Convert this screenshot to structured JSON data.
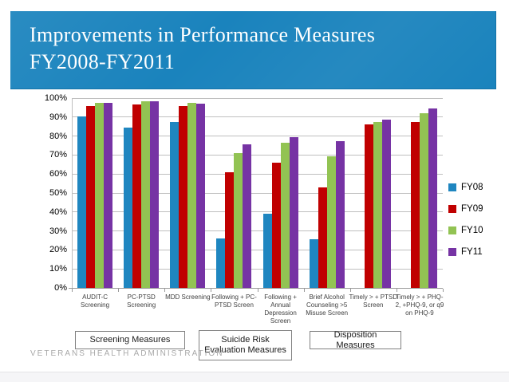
{
  "slide": {
    "title_line1": "Improvements in Performance Measures",
    "title_line2": "FY2008-FY2011",
    "footer": "VETERANS HEALTH ADMINISTRATION"
  },
  "colors": {
    "banner_blue": "#1a83bd",
    "fy08_blue": "#1f86c0",
    "fy09_red": "#c00000",
    "fy10_green": "#92c353",
    "fy11_purple": "#7633a4",
    "gridline_gray": "#bfbfbf",
    "axis_gray": "#9a9a9a"
  },
  "chart_data": {
    "type": "bar",
    "title": "",
    "xlabel": "",
    "ylabel": "",
    "ylim": [
      0,
      100
    ],
    "ytick_step": 10,
    "ytick_format": "percent",
    "grid": true,
    "legend_position": "right",
    "categories": [
      "AUDIT-C Screening",
      "PC-PTSD Screening",
      "MDD Screening",
      "Following + PC-PTSD Screen",
      "Following + Annual Depression Screen",
      "Brief Alcohol Counseling >5 Misuse Screen",
      "Timely > + PTSD Screen",
      "Timely > + PHQ-2, +PHQ-9, or q9 on PHQ-9"
    ],
    "series": [
      {
        "name": "FY08",
        "color": "#1f86c0",
        "values": [
          90.5,
          84.5,
          87.5,
          26,
          39,
          25.5,
          null,
          null
        ]
      },
      {
        "name": "FY09",
        "color": "#c00000",
        "values": [
          96,
          96.5,
          96,
          61,
          66,
          53,
          86,
          87.5
        ]
      },
      {
        "name": "FY10",
        "color": "#92c353",
        "values": [
          97.5,
          98.5,
          97.5,
          71,
          76.5,
          69.5,
          87.5,
          92
        ]
      },
      {
        "name": "FY11",
        "color": "#7633a4",
        "values": [
          97.5,
          98.5,
          97,
          75.5,
          79.5,
          77.5,
          88.5,
          94.5
        ]
      }
    ]
  },
  "group_boxes": [
    {
      "label": "Screening Measures"
    },
    {
      "label": "Suicide Risk Evaluation Measures"
    },
    {
      "label": "Disposition Measures"
    }
  ]
}
